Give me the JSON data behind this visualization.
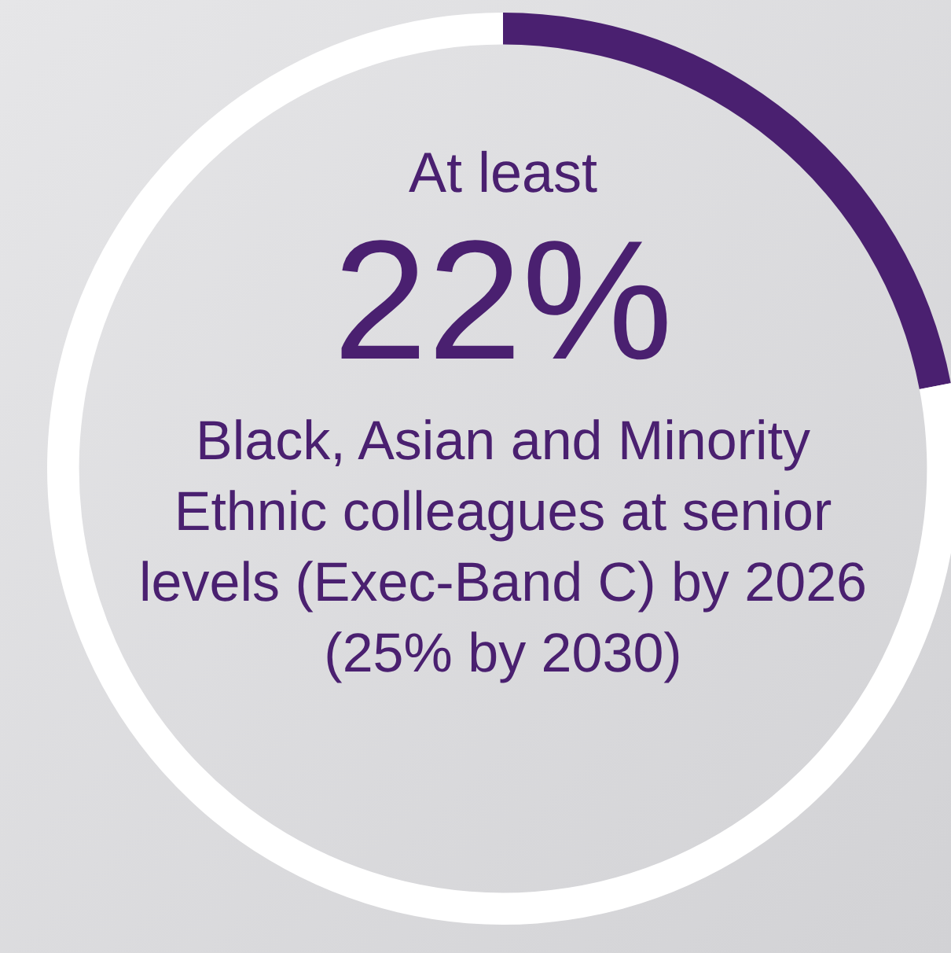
{
  "chart_data": {
    "type": "donut",
    "title": "At least",
    "subtitle": "Black, Asian and Minority Ethnic colleagues at senior levels (Exec-Band C) by 2026 (25% by 2030)",
    "categories": [
      null,
      null
    ],
    "values": [
      22,
      78
    ],
    "colors": [
      "#4a2070",
      "#ffffff"
    ],
    "value_labels": [
      "22%",
      null
    ],
    "legend": false
  }
}
